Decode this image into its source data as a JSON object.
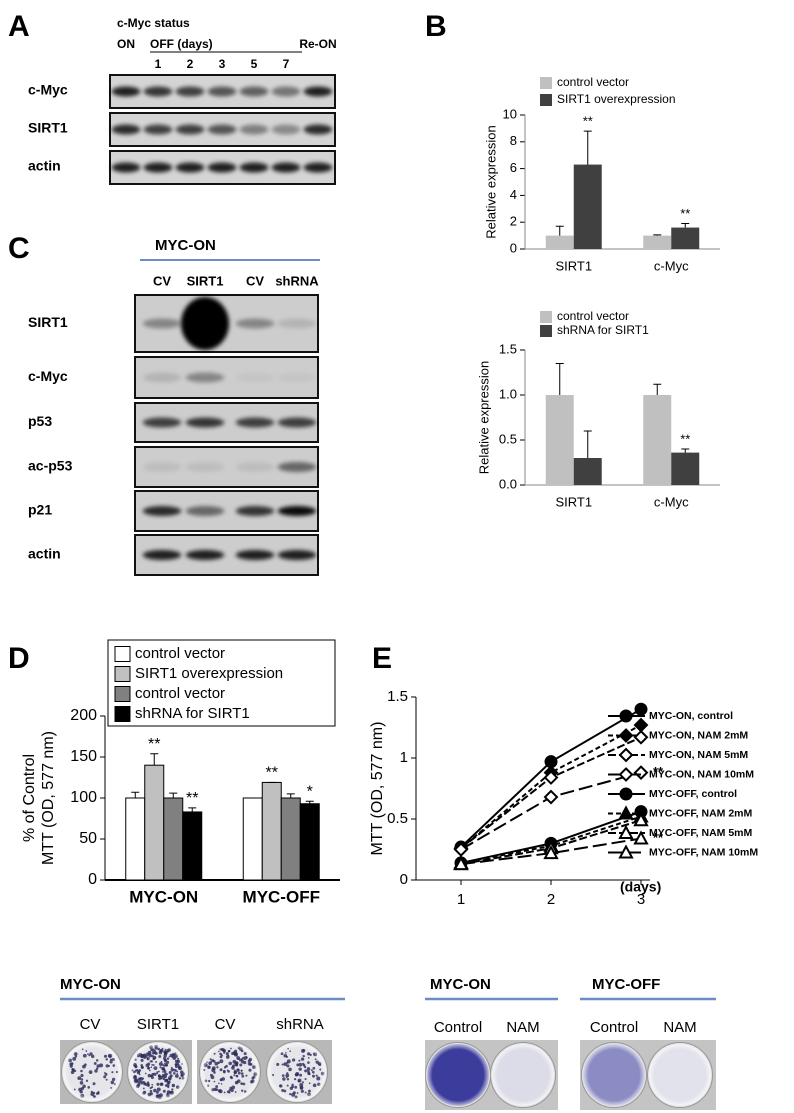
{
  "panel_labels": [
    "A",
    "B",
    "C",
    "D",
    "E"
  ],
  "blot_a": {
    "status_label": "c-Myc status",
    "on": "ON",
    "off": "OFF (days)",
    "days": [
      "1",
      "2",
      "3",
      "5",
      "7"
    ],
    "reon": "Re-ON",
    "rows": [
      "c-Myc",
      "SIRT1",
      "actin"
    ]
  },
  "blot_c": {
    "header": "MYC-ON",
    "lanes": [
      "CV",
      "SIRT1",
      "CV",
      "shRNA"
    ],
    "rows": [
      "SIRT1",
      "c-Myc",
      "p53",
      "ac-p53",
      "p21",
      "actin"
    ]
  },
  "chart_data": [
    {
      "type": "bar",
      "ylabel": [
        "Relative expression"
      ],
      "categories": [
        "SIRT1",
        "c-Myc"
      ],
      "series": [
        {
          "name": "control vector",
          "color": "#c0c0c0",
          "values": [
            1,
            1
          ],
          "errors": [
            0.7,
            0.05
          ],
          "significance": [
            null,
            null
          ]
        },
        {
          "name": "SIRT1 overexpression",
          "color": "#404040",
          "values": [
            6.3,
            1.6
          ],
          "errors": [
            2.5,
            0.3
          ],
          "significance": [
            "**",
            "**"
          ]
        }
      ],
      "ylim": [
        0,
        10
      ],
      "yticks": [
        0,
        2,
        4,
        6,
        8,
        10
      ]
    },
    {
      "type": "bar",
      "ylabel": [
        "Relative expression"
      ],
      "categories": [
        "SIRT1",
        "c-Myc"
      ],
      "series": [
        {
          "name": "control vector",
          "color": "#c0c0c0",
          "values": [
            1,
            1
          ],
          "errors": [
            0.35,
            0.12
          ],
          "significance": [
            null,
            null
          ]
        },
        {
          "name": "shRNA for SIRT1",
          "color": "#404040",
          "values": [
            0.3,
            0.36
          ],
          "errors": [
            0.3,
            0.04
          ],
          "significance": [
            null,
            "**"
          ]
        }
      ],
      "ylim": [
        0,
        1.5
      ],
      "yticks": [
        {
          "value": 0,
          "label": "0.0"
        },
        0.5,
        {
          "value": 1,
          "label": "1.0"
        },
        1.5
      ]
    },
    {
      "type": "bar",
      "ylabel": [
        "% of Control",
        "MTT (OD, 577 nm)"
      ],
      "categories": [
        "MYC-ON",
        "MYC-OFF"
      ],
      "edgecolor": "#000000",
      "series": [
        {
          "name": "control vector",
          "color": "#ffffff",
          "values": [
            100,
            100
          ],
          "errors": [
            7,
            0
          ],
          "significance": [
            null,
            null
          ]
        },
        {
          "name": "SIRT1 overexpression",
          "color": "#c0c0c0",
          "values": [
            140,
            119
          ],
          "errors": [
            14,
            0
          ],
          "significance": [
            "**",
            "**"
          ]
        },
        {
          "name": "control vector",
          "color": "#808080",
          "values": [
            100,
            100
          ],
          "errors": [
            6,
            5
          ],
          "significance": [
            null,
            null
          ]
        },
        {
          "name": "shRNA for SIRT1",
          "color": "#000000",
          "values": [
            83,
            93
          ],
          "errors": [
            5,
            3
          ],
          "significance": [
            "**",
            "*"
          ]
        }
      ],
      "ylim": [
        0,
        200
      ],
      "yticks": [
        0,
        50,
        100,
        150,
        200
      ]
    },
    {
      "type": "line",
      "ylabel": [
        "MTT (OD, 577 nm)"
      ],
      "xlabel": "(days)",
      "x": [
        1,
        2,
        3
      ],
      "xlim": [
        0.5,
        3.1
      ],
      "xticks": [
        1,
        2,
        3
      ],
      "ylim": [
        0,
        1.5
      ],
      "yticks": [
        0,
        0.5,
        1,
        1.5
      ],
      "series": [
        {
          "name": "MYC-ON, control",
          "color": "#000000",
          "dash": "none",
          "marker": "circle",
          "marker_fill": "#000000",
          "values": [
            0.27,
            0.97,
            1.4
          ],
          "significance": [
            null,
            null,
            null
          ]
        },
        {
          "name": "MYC-ON, NAM 2mM",
          "color": "#000000",
          "dash": "5 3",
          "marker": "diamond",
          "marker_fill": "#000000",
          "values": [
            0.26,
            0.88,
            1.27
          ],
          "significance": [
            null,
            null,
            null
          ]
        },
        {
          "name": "MYC-ON, NAM 5mM",
          "color": "#000000",
          "dash": "8 3",
          "marker": "diamond",
          "marker_fill": "#ffffff",
          "values": [
            0.26,
            0.84,
            1.17
          ],
          "significance": [
            null,
            null,
            null
          ]
        },
        {
          "name": "MYC-ON, NAM 10mM",
          "color": "#000000",
          "dash": "14 5",
          "marker": "diamond",
          "marker_fill": "#ffffff",
          "values": [
            0.25,
            0.68,
            0.88
          ],
          "significance": [
            null,
            null,
            "**"
          ]
        },
        {
          "name": "MYC-OFF, control",
          "color": "#000000",
          "dash": "none",
          "marker": "circle",
          "marker_fill": "#000000",
          "values": [
            0.14,
            0.3,
            0.56
          ],
          "significance": [
            null,
            null,
            null
          ]
        },
        {
          "name": "MYC-OFF, NAM 2mM",
          "color": "#000000",
          "dash": "5 3",
          "marker": "triangle",
          "marker_fill": "#000000",
          "values": [
            0.14,
            0.28,
            0.52
          ],
          "significance": [
            null,
            null,
            null
          ]
        },
        {
          "name": "MYC-OFF, NAM 5mM",
          "color": "#000000",
          "dash": "8 3",
          "marker": "triangle",
          "marker_fill": "#ffffff",
          "values": [
            0.13,
            0.26,
            0.49
          ],
          "significance": [
            null,
            null,
            null
          ]
        },
        {
          "name": "MYC-OFF, NAM 10mM",
          "color": "#000000",
          "dash": "14 5",
          "marker": "triangle",
          "marker_fill": "#ffffff",
          "values": [
            0.13,
            0.22,
            0.34
          ],
          "significance": [
            null,
            null,
            "**"
          ]
        }
      ]
    }
  ],
  "colony_d": {
    "header": "MYC-ON",
    "lanes": [
      "CV",
      "SIRT1",
      "CV",
      "shRNA"
    ]
  },
  "colony_e": [
    {
      "header": "MYC-ON",
      "lanes": [
        "Control",
        "NAM"
      ]
    },
    {
      "header": "MYC-OFF",
      "lanes": [
        "Control",
        "NAM"
      ]
    }
  ]
}
